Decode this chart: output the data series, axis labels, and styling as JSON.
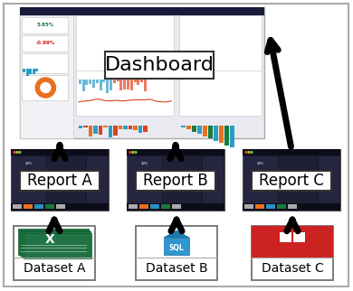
{
  "title": "Dashboard",
  "reports": [
    "Report A",
    "Report B",
    "Report C"
  ],
  "datasets": [
    "Dataset A",
    "Dataset B",
    "Dataset C"
  ],
  "dashboard_label_fontsize": 16,
  "report_label_fontsize": 12,
  "dataset_label_fontsize": 10,
  "arrow_lw": 5,
  "arrow_mutation_scale": 22
}
